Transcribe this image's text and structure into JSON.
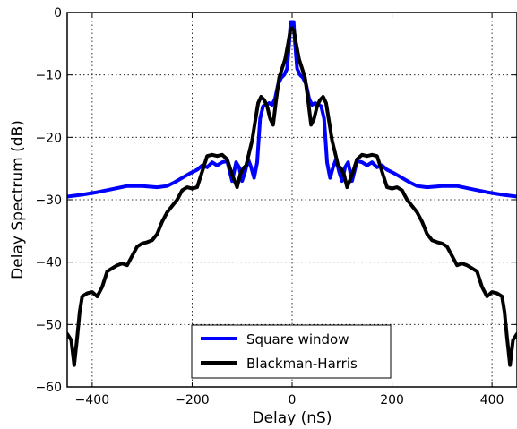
{
  "chart_data": {
    "type": "line",
    "xlabel": "Delay (nS)",
    "ylabel": "Delay Spectrum (dB)",
    "xlim": [
      -450,
      450
    ],
    "ylim": [
      -60,
      0
    ],
    "xticks": [
      -400,
      -200,
      0,
      200,
      400
    ],
    "xtick_labels": [
      "−400",
      "−200",
      "0",
      "200",
      "400"
    ],
    "yticks": [
      0,
      -10,
      -20,
      -30,
      -40,
      -50,
      -60
    ],
    "ytick_labels": [
      "0",
      "−10",
      "−20",
      "−30",
      "−40",
      "−50",
      "−60"
    ],
    "grid": true,
    "legend_position": "lower-center",
    "series": [
      {
        "name": "Square window",
        "color": "#0000ff",
        "x": [
          -450,
          -420,
          -390,
          -360,
          -330,
          -300,
          -270,
          -250,
          -235,
          -220,
          -205,
          -190,
          -180,
          -170,
          -160,
          -150,
          -140,
          -130,
          -120,
          -112,
          -106,
          -100,
          -94,
          -88,
          -82,
          -76,
          -70,
          -64,
          -58,
          -52,
          -46,
          -40,
          -34,
          -28,
          -22,
          -16,
          -10,
          -6,
          -3,
          0,
          3,
          6,
          10,
          16,
          22,
          28,
          34,
          40,
          46,
          52,
          58,
          64,
          70,
          76,
          82,
          88,
          94,
          100,
          106,
          112,
          120,
          130,
          140,
          150,
          160,
          170,
          180,
          190,
          205,
          220,
          235,
          250,
          270,
          300,
          330,
          360,
          390,
          420,
          450
        ],
        "y": [
          -29.5,
          -29.2,
          -28.8,
          -28.3,
          -27.8,
          -27.8,
          -28.0,
          -27.8,
          -27.2,
          -26.5,
          -25.8,
          -25.2,
          -24.5,
          -24.8,
          -24.0,
          -24.5,
          -24.0,
          -23.8,
          -27.0,
          -24.0,
          -24.8,
          -27.0,
          -25.5,
          -23.5,
          -24.8,
          -26.5,
          -24.0,
          -17.0,
          -15.0,
          -14.8,
          -14.5,
          -14.8,
          -13.8,
          -11.5,
          -10.5,
          -10.0,
          -9.0,
          -5.0,
          -1.5,
          -1.5,
          -1.5,
          -5.0,
          -9.0,
          -10.0,
          -10.5,
          -11.5,
          -13.8,
          -14.8,
          -14.5,
          -14.8,
          -15.0,
          -17.0,
          -24.0,
          -26.5,
          -24.8,
          -23.5,
          -25.5,
          -27.0,
          -24.8,
          -24.0,
          -27.0,
          -23.8,
          -24.0,
          -24.5,
          -24.0,
          -24.8,
          -24.5,
          -25.2,
          -25.8,
          -26.5,
          -27.2,
          -27.8,
          -28.0,
          -27.8,
          -27.8,
          -28.3,
          -28.8,
          -29.2,
          -29.5
        ]
      },
      {
        "name": "Blackman-Harris",
        "color": "#000000",
        "x": [
          -450,
          -442,
          -436,
          -430,
          -425,
          -420,
          -410,
          -400,
          -390,
          -380,
          -370,
          -360,
          -350,
          -340,
          -330,
          -320,
          -310,
          -300,
          -290,
          -280,
          -270,
          -260,
          -250,
          -240,
          -230,
          -220,
          -210,
          -200,
          -190,
          -180,
          -170,
          -160,
          -150,
          -140,
          -130,
          -120,
          -110,
          -104,
          -98,
          -92,
          -86,
          -80,
          -74,
          -68,
          -62,
          -56,
          -50,
          -44,
          -38,
          -32,
          -26,
          -20,
          -14,
          -8,
          -4,
          0,
          4,
          8,
          14,
          20,
          26,
          32,
          38,
          44,
          50,
          56,
          62,
          68,
          74,
          80,
          86,
          92,
          98,
          104,
          110,
          120,
          130,
          140,
          150,
          160,
          170,
          180,
          190,
          200,
          210,
          220,
          230,
          240,
          250,
          260,
          270,
          280,
          290,
          300,
          310,
          320,
          330,
          340,
          350,
          360,
          370,
          380,
          390,
          400,
          410,
          420,
          425,
          430,
          436,
          442,
          450
        ],
        "y": [
          -51.5,
          -52.5,
          -56.5,
          -52.0,
          -48.0,
          -45.5,
          -45.0,
          -44.8,
          -45.5,
          -44.0,
          -41.5,
          -41.0,
          -40.5,
          -40.2,
          -40.5,
          -39.0,
          -37.5,
          -37.0,
          -36.8,
          -36.5,
          -35.5,
          -33.5,
          -32.0,
          -31.0,
          -30.0,
          -28.5,
          -28.0,
          -28.2,
          -28.0,
          -25.5,
          -23.0,
          -22.8,
          -23.0,
          -22.8,
          -23.5,
          -26.0,
          -28.0,
          -26.0,
          -25.0,
          -24.5,
          -22.5,
          -20.5,
          -17.5,
          -14.5,
          -13.5,
          -14.0,
          -15.0,
          -17.0,
          -18.0,
          -14.0,
          -10.5,
          -9.0,
          -7.5,
          -5.0,
          -3.0,
          -2.5,
          -3.0,
          -5.0,
          -7.5,
          -9.0,
          -10.5,
          -14.0,
          -18.0,
          -17.0,
          -15.0,
          -14.0,
          -13.5,
          -14.5,
          -17.5,
          -20.5,
          -22.5,
          -24.5,
          -25.0,
          -26.0,
          -28.0,
          -26.0,
          -23.5,
          -22.8,
          -23.0,
          -22.8,
          -23.0,
          -25.5,
          -28.0,
          -28.2,
          -28.0,
          -28.5,
          -30.0,
          -31.0,
          -32.0,
          -33.5,
          -35.5,
          -36.5,
          -36.8,
          -37.0,
          -37.5,
          -39.0,
          -40.5,
          -40.2,
          -40.5,
          -41.0,
          -41.5,
          -44.0,
          -45.5,
          -44.8,
          -45.0,
          -45.5,
          -48.0,
          -52.0,
          -56.5,
          -52.5,
          -51.5
        ]
      }
    ]
  }
}
